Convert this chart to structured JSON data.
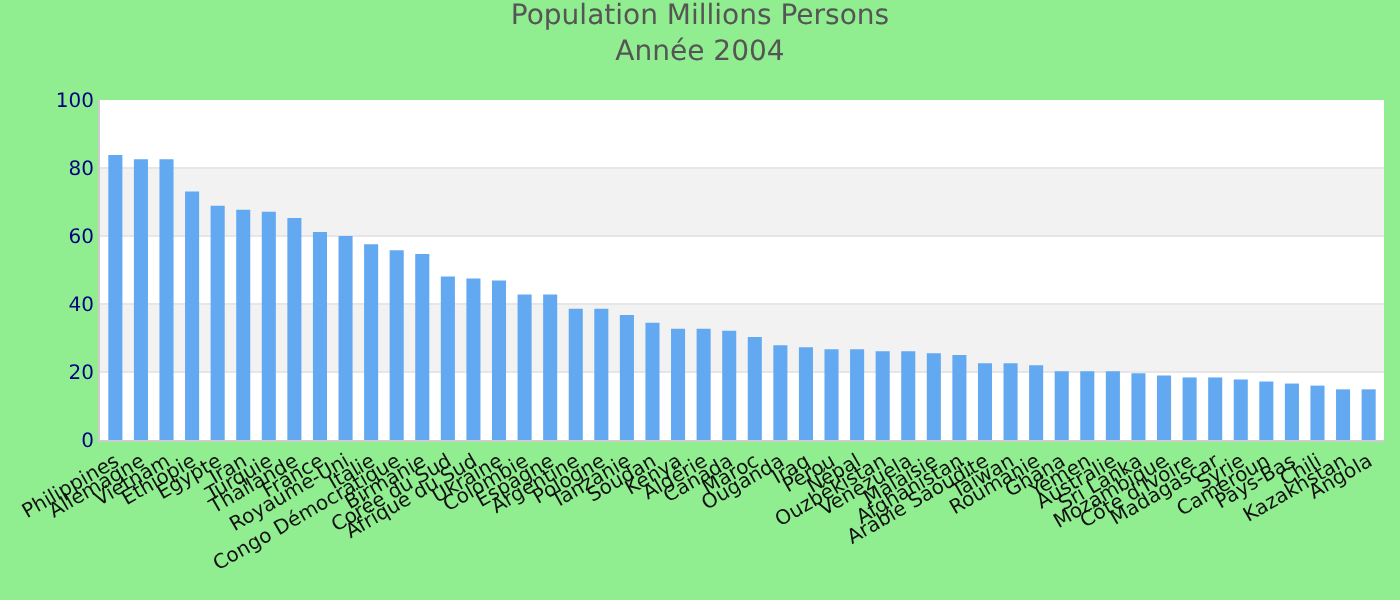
{
  "chart_data": {
    "type": "bar",
    "title": "Population Millions Persons",
    "subtitle": "Année 2004",
    "categories": [
      "Philippines",
      "Allemagne",
      "Vietnam",
      "Ethiopie",
      "Egypte",
      "Iran",
      "Turquie",
      "Thaïlande",
      "France",
      "Royaume-Uni",
      "Italie",
      "Congo Démocratique",
      "Birmanie",
      "Corée du Sud",
      "Afrique du Sud",
      "Ukraine",
      "Colombie",
      "Espagne",
      "Argentine",
      "Pologne",
      "Tanzanie",
      "Soudan",
      "Kenya",
      "Algérie",
      "Canada",
      "Maroc",
      "Ouganda",
      "Iraq",
      "Pérou",
      "Népal",
      "Ouzbékistan",
      "Venezuela",
      "Malaisie",
      "Afghanistan",
      "Arabie Saoudite",
      "Taïwan",
      "Roumanie",
      "Ghana",
      "Yémen",
      "Australie",
      "Sri Lanka",
      "Mozambique",
      "Côte d'Ivoire",
      "Madagascar",
      "Syrie",
      "Cameroun",
      "Pays-Bas",
      "Chili",
      "Kazakhstan",
      "Angola"
    ],
    "values": [
      83.8,
      82.6,
      82.6,
      73.1,
      68.9,
      67.7,
      67.1,
      65.3,
      61.2,
      60,
      57.6,
      55.8,
      54.7,
      48.1,
      47.5,
      46.9,
      42.8,
      42.8,
      38.6,
      38.6,
      36.8,
      34.5,
      32.7,
      32.7,
      32.1,
      30.3,
      27.9,
      27.3,
      26.7,
      26.7,
      26.1,
      26.1,
      25.5,
      25,
      22.6,
      22.6,
      22,
      20.2,
      20.2,
      20.2,
      19.6,
      19,
      18.4,
      18.4,
      17.8,
      17.2,
      16.6,
      16,
      14.9,
      14.9
    ],
    "color": "#63a9f1",
    "ylim": [
      0,
      100
    ],
    "yticks": [
      0,
      20,
      40,
      60,
      80,
      100
    ],
    "grid": true
  }
}
